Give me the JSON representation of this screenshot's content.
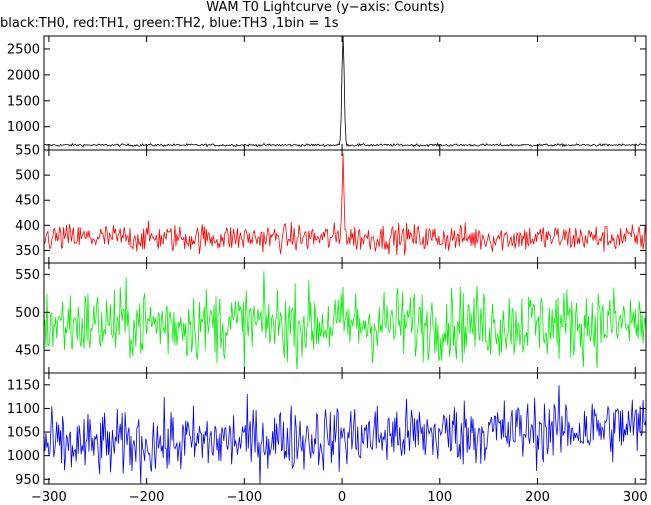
{
  "chart_data": {
    "type": "line",
    "title": "WAM T0 Lightcurve (y−axis: Counts)",
    "subtitle": "black:TH0, red:TH1, green:TH2, blue:TH3 ,1bin = 1s",
    "xlabel": "",
    "xlim": [
      -305,
      311
    ],
    "x_ticks": [
      -300,
      -200,
      -100,
      0,
      100,
      200,
      300
    ],
    "x_tick_labels": [
      "−300",
      "−200",
      "−100",
      "0",
      "100",
      "200",
      "300"
    ],
    "bin_seconds": 1,
    "grid": false,
    "panels": [
      {
        "name": "TH0",
        "color": "#000000",
        "ylim": [
          550,
          2750
        ],
        "y_ticks": [
          550,
          1000,
          1500,
          2000,
          2500
        ],
        "baseline": 645,
        "noise": 12,
        "peak_time": 1,
        "peak_value": 2750,
        "peak_width": 1.2
      },
      {
        "name": "TH1",
        "color": "#ff0000",
        "ylim": [
          325,
          550
        ],
        "y_ticks": [
          350,
          400,
          450,
          500
        ],
        "baseline": 375,
        "noise": 14,
        "peak_time": 1,
        "peak_value": 550,
        "peak_width": 1.0
      },
      {
        "name": "TH2",
        "color": "#00ee00",
        "ylim": [
          420,
          565
        ],
        "y_ticks": [
          450,
          500,
          550
        ],
        "baseline": 485,
        "noise": 24,
        "peak_time": 1,
        "peak_value": 485,
        "peak_width": 1.0
      },
      {
        "name": "TH3",
        "color": "#0000ff",
        "ylim": [
          940,
          1175
        ],
        "y_ticks": [
          950,
          1000,
          1050,
          1100,
          1150
        ],
        "baseline": 1040,
        "trend": 0.07,
        "noise": 35,
        "peak_time": 1,
        "peak_value": 1040,
        "peak_width": 1.0
      }
    ]
  }
}
